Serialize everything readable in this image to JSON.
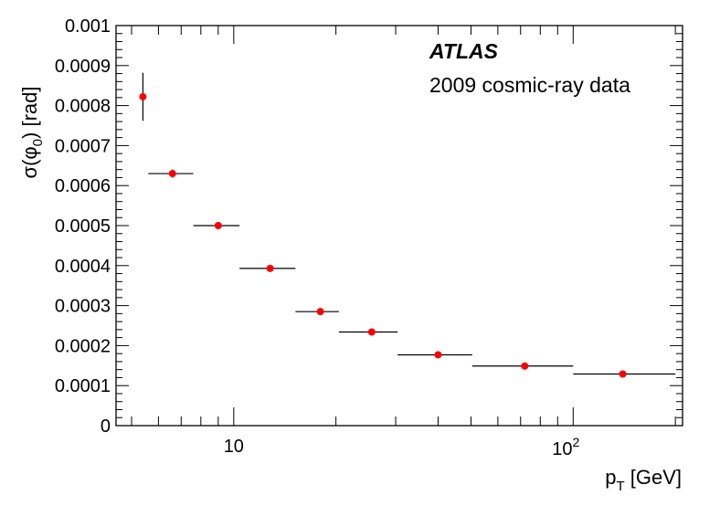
{
  "chart_data": {
    "type": "scatter",
    "xlabel": {
      "base": "p",
      "sub": "T",
      "unit": "[GeV]"
    },
    "ylabel": {
      "pre": "σ(φ",
      "sub": "0",
      "post": ") [rad]"
    },
    "x_scale": "log",
    "xlim": [
      4.5,
      210
    ],
    "ylim": [
      0,
      0.001
    ],
    "yticks": [
      "0",
      "0.0001",
      "0.0002",
      "0.0003",
      "0.0004",
      "0.0005",
      "0.0006",
      "0.0007",
      "0.0008",
      "0.0009",
      "0.001"
    ],
    "xtick_labels": [
      {
        "value": 10,
        "text": "10"
      },
      {
        "value": 100,
        "base": "10",
        "exp": "2"
      }
    ],
    "annotations": {
      "experiment": "ATLAS",
      "dataset": "2009 cosmic-ray data"
    },
    "marker_color": "#ff0000",
    "grid": false,
    "points": [
      {
        "x": 5.4,
        "xlo": 5.4,
        "xhi": 5.4,
        "y": 0.000822,
        "yerr": 6e-05
      },
      {
        "x": 6.6,
        "xlo": 5.6,
        "xhi": 7.6,
        "y": 0.00063,
        "yerr": 1e-05
      },
      {
        "x": 9.0,
        "xlo": 7.6,
        "xhi": 10.4,
        "y": 0.0005,
        "yerr": 9e-06
      },
      {
        "x": 12.8,
        "xlo": 10.4,
        "xhi": 15.2,
        "y": 0.000393,
        "yerr": 4e-06
      },
      {
        "x": 18.0,
        "xlo": 15.2,
        "xhi": 20.4,
        "y": 0.000285,
        "yerr": 3e-06
      },
      {
        "x": 25.5,
        "xlo": 20.4,
        "xhi": 30.4,
        "y": 0.000234,
        "yerr": 2e-06
      },
      {
        "x": 40.0,
        "xlo": 30.4,
        "xhi": 50.4,
        "y": 0.000177,
        "yerr": 2e-06
      },
      {
        "x": 72.0,
        "xlo": 50.4,
        "xhi": 100.0,
        "y": 0.000149,
        "yerr": 2e-06
      },
      {
        "x": 140.0,
        "xlo": 100.0,
        "xhi": 200.0,
        "y": 0.000129,
        "yerr": 2e-06
      }
    ]
  }
}
